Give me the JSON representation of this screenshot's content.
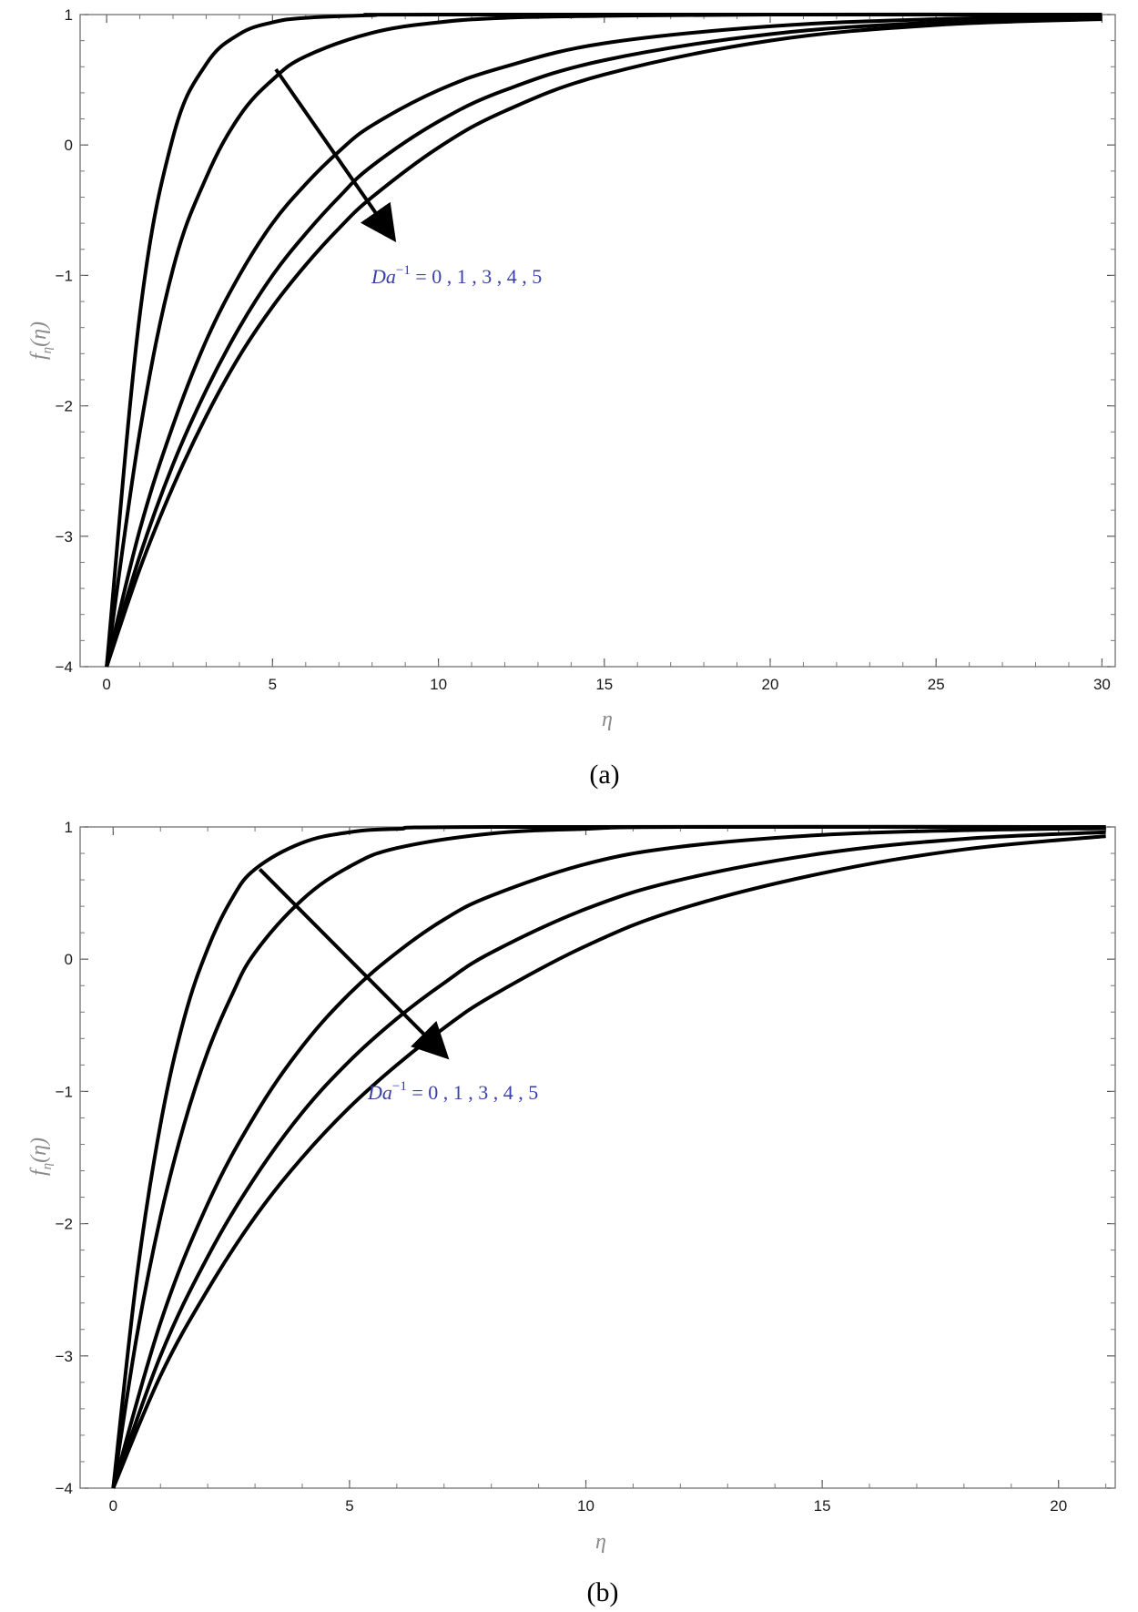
{
  "chart_data": [
    {
      "type": "line",
      "caption": "(a)",
      "xlabel": "η",
      "ylabel": "f",
      "ylabel_sub": "η",
      "ylabel_arg": "(η)",
      "xlim": [
        -0.8,
        30.4
      ],
      "ylim": [
        -4,
        1
      ],
      "xticks": [
        0,
        5,
        10,
        15,
        20,
        25,
        30
      ],
      "yticks": [
        -4,
        -3,
        -2,
        -1,
        0,
        1
      ],
      "grid": false,
      "line_color": "#000000",
      "annotation": {
        "prefix": "Da",
        "sup": "−1",
        "suffix": " = 0 , 1 , 3 , 4 , 5",
        "color": "#3a3fa8"
      },
      "arrow": {
        "from": [
          5.1,
          0.58
        ],
        "to": [
          8.6,
          -0.7
        ]
      },
      "series": [
        {
          "values": [
            [
              0,
              -4
            ],
            [
              1,
              -1.3
            ],
            [
              2,
              0.06
            ],
            [
              3,
              0.62
            ],
            [
              4,
              0.85
            ],
            [
              5,
              0.94
            ],
            [
              6,
              0.975
            ],
            [
              8,
              0.995
            ],
            [
              10,
              1
            ],
            [
              30,
              1
            ]
          ]
        },
        {
          "values": [
            [
              0,
              -4
            ],
            [
              1,
              -2.2
            ],
            [
              2,
              -0.95
            ],
            [
              3,
              -0.25
            ],
            [
              4,
              0.22
            ],
            [
              5,
              0.5
            ],
            [
              6,
              0.68
            ],
            [
              8,
              0.86
            ],
            [
              10,
              0.94
            ],
            [
              12,
              0.975
            ],
            [
              15,
              0.99
            ],
            [
              20,
              1
            ],
            [
              30,
              1
            ]
          ]
        },
        {
          "values": [
            [
              0,
              -4
            ],
            [
              1,
              -2.95
            ],
            [
              2,
              -2.15
            ],
            [
              3,
              -1.5
            ],
            [
              4,
              -1.0
            ],
            [
              5,
              -0.6
            ],
            [
              6,
              -0.3
            ],
            [
              7,
              -0.05
            ],
            [
              8,
              0.15
            ],
            [
              10,
              0.42
            ],
            [
              12,
              0.6
            ],
            [
              15,
              0.78
            ],
            [
              20,
              0.91
            ],
            [
              25,
              0.965
            ],
            [
              30,
              0.985
            ]
          ]
        },
        {
          "values": [
            [
              0,
              -4
            ],
            [
              1,
              -3.15
            ],
            [
              2,
              -2.45
            ],
            [
              3,
              -1.88
            ],
            [
              4,
              -1.4
            ],
            [
              5,
              -1.0
            ],
            [
              6,
              -0.68
            ],
            [
              7,
              -0.4
            ],
            [
              8,
              -0.16
            ],
            [
              10,
              0.18
            ],
            [
              12,
              0.42
            ],
            [
              15,
              0.65
            ],
            [
              20,
              0.85
            ],
            [
              25,
              0.94
            ],
            [
              30,
              0.975
            ]
          ]
        },
        {
          "values": [
            [
              0,
              -4
            ],
            [
              1,
              -3.25
            ],
            [
              2,
              -2.62
            ],
            [
              3,
              -2.08
            ],
            [
              4,
              -1.62
            ],
            [
              5,
              -1.24
            ],
            [
              6,
              -0.92
            ],
            [
              7,
              -0.64
            ],
            [
              8,
              -0.4
            ],
            [
              10,
              -0.02
            ],
            [
              12,
              0.26
            ],
            [
              15,
              0.54
            ],
            [
              20,
              0.8
            ],
            [
              25,
              0.92
            ],
            [
              30,
              0.965
            ]
          ]
        }
      ]
    },
    {
      "type": "line",
      "caption": "(b)",
      "xlabel": "η",
      "ylabel": "f",
      "ylabel_sub": "η",
      "ylabel_arg": "(η)",
      "xlim": [
        -0.7,
        21.2
      ],
      "ylim": [
        -4,
        1
      ],
      "xticks": [
        0,
        5,
        10,
        15,
        20
      ],
      "yticks": [
        -4,
        -3,
        -2,
        -1,
        0,
        1
      ],
      "grid": false,
      "line_color": "#000000",
      "annotation": {
        "prefix": "Da",
        "sup": "−1",
        "suffix": " = 0 , 1 , 3 , 4 , 5",
        "color": "#3a3fa8"
      },
      "arrow": {
        "from": [
          3.1,
          0.68
        ],
        "to": [
          7.0,
          -0.72
        ]
      },
      "series": [
        {
          "values": [
            [
              0,
              -4
            ],
            [
              0.5,
              -2.4
            ],
            [
              1,
              -1.25
            ],
            [
              1.5,
              -0.45
            ],
            [
              2,
              0.08
            ],
            [
              2.5,
              0.45
            ],
            [
              3,
              0.68
            ],
            [
              4,
              0.88
            ],
            [
              5,
              0.96
            ],
            [
              6,
              0.985
            ],
            [
              8,
              1
            ],
            [
              21,
              1
            ]
          ]
        },
        {
          "values": [
            [
              0,
              -4
            ],
            [
              0.5,
              -2.85
            ],
            [
              1,
              -1.95
            ],
            [
              1.5,
              -1.25
            ],
            [
              2,
              -0.7
            ],
            [
              2.5,
              -0.28
            ],
            [
              3,
              0.05
            ],
            [
              4,
              0.45
            ],
            [
              5,
              0.7
            ],
            [
              6,
              0.84
            ],
            [
              8,
              0.95
            ],
            [
              10,
              0.985
            ],
            [
              12,
              1
            ],
            [
              21,
              1
            ]
          ]
        },
        {
          "values": [
            [
              0,
              -4
            ],
            [
              1,
              -2.75
            ],
            [
              2,
              -1.85
            ],
            [
              3,
              -1.18
            ],
            [
              4,
              -0.66
            ],
            [
              5,
              -0.26
            ],
            [
              6,
              0.05
            ],
            [
              7,
              0.3
            ],
            [
              8,
              0.48
            ],
            [
              10,
              0.72
            ],
            [
              12,
              0.85
            ],
            [
              15,
              0.94
            ],
            [
              18,
              0.975
            ],
            [
              21,
              0.99
            ]
          ]
        },
        {
          "values": [
            [
              0,
              -4
            ],
            [
              1,
              -3.0
            ],
            [
              2,
              -2.25
            ],
            [
              3,
              -1.65
            ],
            [
              4,
              -1.16
            ],
            [
              5,
              -0.77
            ],
            [
              6,
              -0.45
            ],
            [
              7,
              -0.18
            ],
            [
              8,
              0.05
            ],
            [
              10,
              0.38
            ],
            [
              12,
              0.6
            ],
            [
              15,
              0.8
            ],
            [
              18,
              0.91
            ],
            [
              21,
              0.96
            ]
          ]
        },
        {
          "values": [
            [
              0,
              -4
            ],
            [
              1,
              -3.15
            ],
            [
              2,
              -2.5
            ],
            [
              3,
              -1.95
            ],
            [
              4,
              -1.5
            ],
            [
              5,
              -1.12
            ],
            [
              6,
              -0.8
            ],
            [
              7,
              -0.52
            ],
            [
              8,
              -0.28
            ],
            [
              10,
              0.1
            ],
            [
              12,
              0.38
            ],
            [
              15,
              0.65
            ],
            [
              18,
              0.83
            ],
            [
              21,
              0.93
            ]
          ]
        }
      ]
    }
  ]
}
